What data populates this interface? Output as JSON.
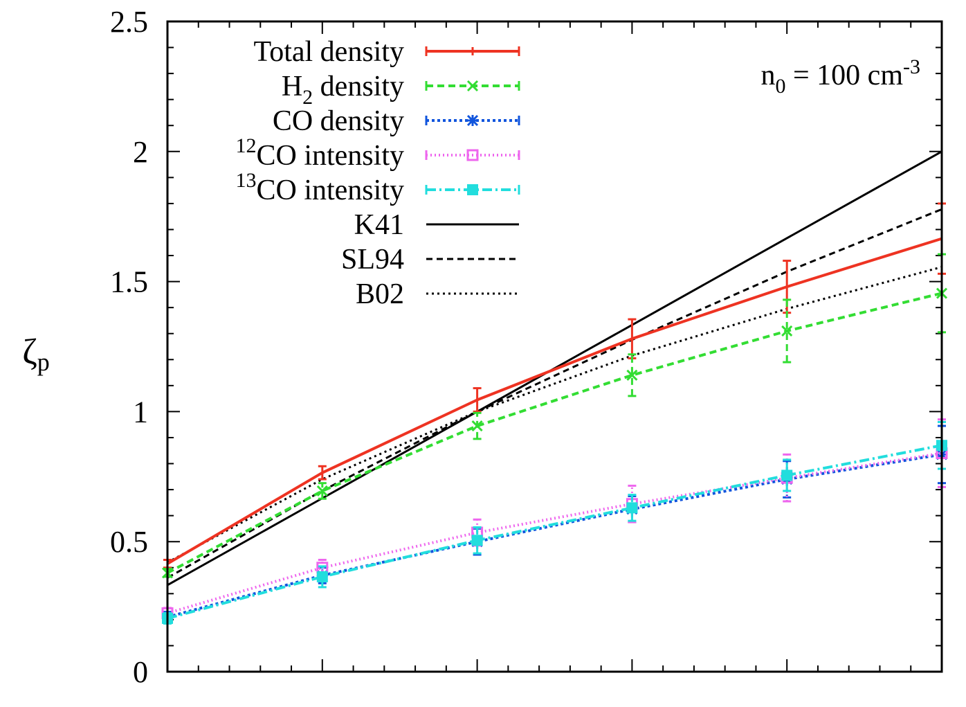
{
  "chart_data": {
    "type": "line",
    "title": "",
    "xlabel": "",
    "ylabel": "ζp",
    "ylabel_main": "ζ",
    "ylabel_sub": "p",
    "xlim": [
      0,
      5
    ],
    "ylim": [
      0,
      2.5
    ],
    "x": [
      0,
      1,
      2,
      3,
      4,
      5
    ],
    "y_ticks": [
      0,
      0.5,
      1,
      1.5,
      2,
      2.5
    ],
    "y_tick_labels": [
      "0",
      "0.5",
      "1",
      "1.5",
      "2",
      "2.5"
    ],
    "annotation": {
      "main": "n",
      "sub": "0",
      "middle": " = 100 cm",
      "sup": "-3"
    },
    "series": [
      {
        "name": "Total density",
        "legend_pre": "",
        "legend_sup": "",
        "legend_text": "Total density",
        "legend_sub": "",
        "legend_post": "",
        "color": "#ee3322",
        "dash": "",
        "width": 4,
        "marker": "tick",
        "values": [
          0.415,
          0.765,
          1.045,
          1.28,
          1.48,
          1.665
        ],
        "errors": [
          0.015,
          0.025,
          0.045,
          0.075,
          0.1,
          0.135
        ]
      },
      {
        "name": "H2 density",
        "legend_pre": "",
        "legend_sup": "",
        "legend_text": "H",
        "legend_sub": "2",
        "legend_post": " density",
        "color": "#33dd33",
        "dash": "10,6",
        "width": 4,
        "marker": "x",
        "values": [
          0.38,
          0.695,
          0.945,
          1.14,
          1.31,
          1.455
        ],
        "errors": [
          0.015,
          0.03,
          0.05,
          0.08,
          0.12,
          0.15
        ]
      },
      {
        "name": "CO density",
        "legend_pre": "",
        "legend_sup": "",
        "legend_text": "CO density",
        "legend_sub": "",
        "legend_post": "",
        "color": "#1155dd",
        "dash": "4,4",
        "width": 4,
        "marker": "star",
        "values": [
          0.21,
          0.37,
          0.5,
          0.625,
          0.74,
          0.835
        ],
        "errors": [
          0.02,
          0.03,
          0.05,
          0.05,
          0.07,
          0.11
        ]
      },
      {
        "name": "12CO intensity",
        "legend_pre": "",
        "legend_sup": "12",
        "legend_text": "CO intensity",
        "legend_sub": "",
        "legend_post": "",
        "color": "#ee66ee",
        "dash": "2,4",
        "width": 4,
        "marker": "open-square",
        "values": [
          0.225,
          0.4,
          0.535,
          0.645,
          0.745,
          0.84
        ],
        "errors": [
          0.02,
          0.03,
          0.05,
          0.07,
          0.09,
          0.13
        ]
      },
      {
        "name": "13CO intensity",
        "legend_pre": "",
        "legend_sup": "13",
        "legend_text": "CO intensity",
        "legend_sub": "",
        "legend_post": "",
        "color": "#22dddd",
        "dash": "14,5,3,5",
        "width": 4,
        "marker": "filled-square",
        "values": [
          0.205,
          0.365,
          0.505,
          0.63,
          0.755,
          0.87
        ],
        "errors": [
          0.02,
          0.04,
          0.05,
          0.05,
          0.06,
          0.09
        ]
      },
      {
        "name": "K41",
        "legend_pre": "",
        "legend_sup": "",
        "legend_text": "K41",
        "legend_sub": "",
        "legend_post": "",
        "color": "#000000",
        "dash": "",
        "width": 3,
        "marker": "none",
        "values": [
          0.333,
          0.667,
          1.0,
          1.333,
          1.667,
          2.0
        ]
      },
      {
        "name": "SL94",
        "legend_pre": "",
        "legend_sup": "",
        "legend_text": "SL94",
        "legend_sub": "",
        "legend_post": "",
        "color": "#000000",
        "dash": "9,6",
        "width": 3,
        "marker": "none",
        "values": [
          0.361,
          0.696,
          1.0,
          1.276,
          1.538,
          1.778
        ]
      },
      {
        "name": "B02",
        "legend_pre": "",
        "legend_sup": "",
        "legend_text": "B02",
        "legend_sub": "",
        "legend_post": "",
        "color": "#000000",
        "dash": "3,5",
        "width": 3,
        "marker": "none",
        "values": [
          0.42,
          0.74,
          1.0,
          1.215,
          1.395,
          1.556
        ]
      }
    ]
  }
}
